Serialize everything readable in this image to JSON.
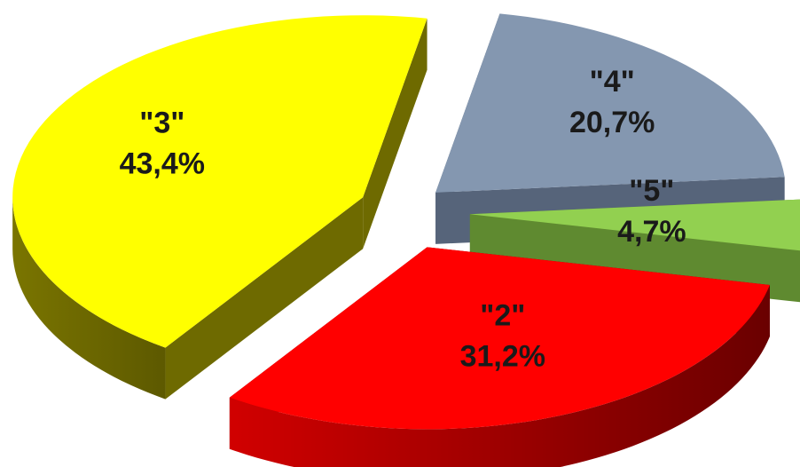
{
  "chart_data": {
    "type": "pie",
    "style": "3d-exploded",
    "categories": [
      "\"2\"",
      "\"3\"",
      "\"4\"",
      "\"5\""
    ],
    "values": [
      31.2,
      43.4,
      20.7,
      4.7
    ],
    "value_labels": [
      "31,2%",
      "43,4%",
      "20,7%",
      "4,7%"
    ],
    "colors": [
      "#ff0000",
      "#ffff00",
      "#8497b0",
      "#92d050"
    ],
    "side_colors": [
      "#7a0000",
      "#6e6a00",
      "#56647a",
      "#5f8a30"
    ],
    "legend": "none",
    "title": ""
  }
}
